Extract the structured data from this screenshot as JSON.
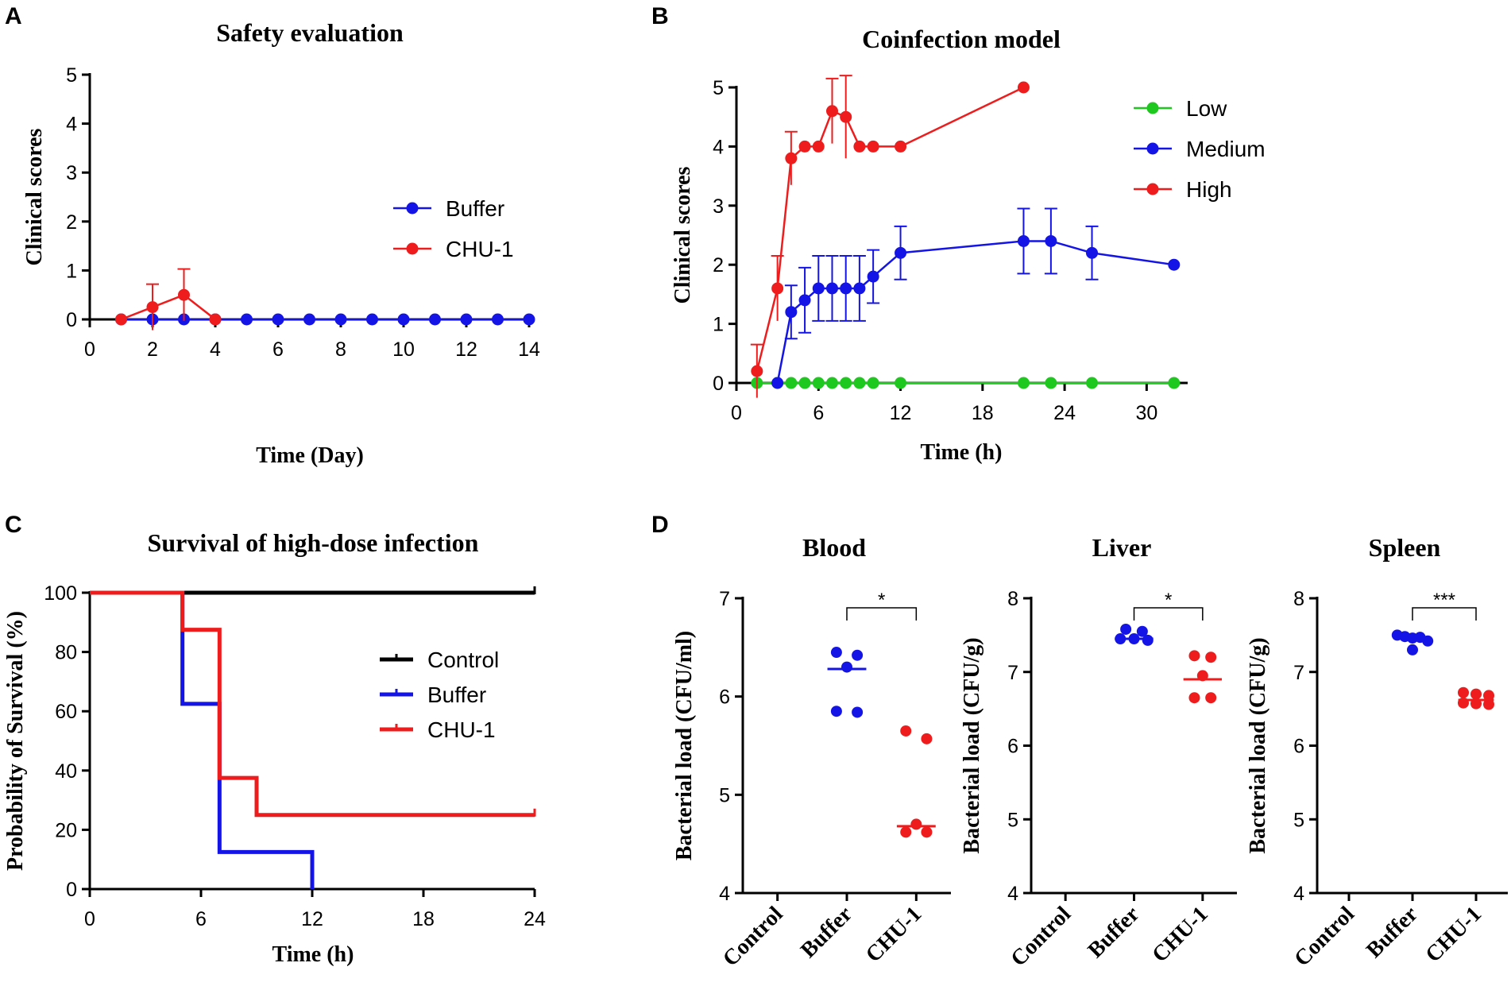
{
  "colors": {
    "blue": "#1414e6",
    "red": "#ee1c1c",
    "green": "#1ec81e",
    "black": "#000000"
  },
  "chart_data": [
    {
      "panel": "A",
      "type": "line",
      "title": "Safety evaluation",
      "xlabel": "Time (Day)",
      "ylabel": "Clinical scores",
      "xlim": [
        0,
        14
      ],
      "ylim": [
        0,
        5
      ],
      "xticks": [
        "0",
        "2",
        "4",
        "6",
        "8",
        "10",
        "12",
        "14"
      ],
      "yticks": [
        "0",
        "1",
        "2",
        "3",
        "4",
        "5"
      ],
      "legend": "right",
      "series": [
        {
          "name": "Buffer",
          "color": "blue",
          "x": [
            1,
            2,
            3,
            4,
            5,
            6,
            7,
            8,
            9,
            10,
            11,
            12,
            13,
            14
          ],
          "y": [
            0,
            0,
            0,
            0,
            0,
            0,
            0,
            0,
            0,
            0,
            0,
            0,
            0,
            0
          ]
        },
        {
          "name": "CHU-1",
          "color": "red",
          "x": [
            1,
            2,
            3,
            4
          ],
          "y": [
            0,
            0.25,
            0.5,
            0
          ],
          "err": [
            0,
            0.47,
            0.53,
            0
          ]
        }
      ]
    },
    {
      "panel": "B",
      "type": "line",
      "title": "Coinfection model",
      "xlabel": "Time (h)",
      "ylabel": "Clinical scores",
      "xlim": [
        0,
        33
      ],
      "ylim": [
        0,
        5
      ],
      "xticks": [
        "0",
        "6",
        "12",
        "18",
        "24",
        "30"
      ],
      "yticks": [
        "0",
        "1",
        "2",
        "3",
        "4",
        "5"
      ],
      "legend": "top-right",
      "series": [
        {
          "name": "Low",
          "color": "green",
          "x": [
            1.5,
            3,
            4,
            5,
            6,
            7,
            8,
            9,
            10,
            12,
            21,
            23,
            26,
            32
          ],
          "y": [
            0,
            0,
            0,
            0,
            0,
            0,
            0,
            0,
            0,
            0,
            0,
            0,
            0,
            0
          ]
        },
        {
          "name": "Medium",
          "color": "blue",
          "x": [
            3,
            4,
            5,
            6,
            7,
            8,
            9,
            10,
            12,
            21,
            23,
            26,
            32
          ],
          "y": [
            0,
            1.2,
            1.4,
            1.6,
            1.6,
            1.6,
            1.6,
            1.8,
            2.2,
            2.4,
            2.4,
            2.2,
            2.0
          ],
          "err": [
            0,
            0.45,
            0.55,
            0.55,
            0.55,
            0.55,
            0.55,
            0.45,
            0.45,
            0.55,
            0.55,
            0.45,
            0
          ]
        },
        {
          "name": "High",
          "color": "red",
          "x": [
            1.5,
            3,
            4,
            5,
            6,
            7,
            8,
            9,
            10,
            12,
            21
          ],
          "y": [
            0.2,
            1.6,
            3.8,
            4.0,
            4.0,
            4.6,
            4.5,
            4.0,
            4.0,
            4.0,
            5.0
          ],
          "err": [
            0.45,
            0.55,
            0.45,
            0,
            0,
            0.55,
            0.7,
            0,
            0,
            0,
            0
          ]
        }
      ]
    },
    {
      "panel": "C",
      "type": "line",
      "title": "Survival of  high-dose infection",
      "xlabel": "Time (h)",
      "ylabel": "Probability of Survival (%)",
      "xlim": [
        0,
        24
      ],
      "ylim": [
        0,
        100
      ],
      "xticks": [
        "0",
        "6",
        "12",
        "18",
        "24"
      ],
      "yticks": [
        "0",
        "20",
        "40",
        "60",
        "80",
        "100"
      ],
      "legend": "right",
      "series": [
        {
          "name": "Control",
          "color": "black",
          "x": [
            0,
            24
          ],
          "y": [
            100,
            100
          ]
        },
        {
          "name": "Buffer",
          "color": "blue",
          "x": [
            0,
            5,
            5,
            7,
            7,
            12,
            12
          ],
          "y": [
            100,
            100,
            62.5,
            62.5,
            12.5,
            12.5,
            0
          ]
        },
        {
          "name": "CHU-1",
          "color": "red",
          "x": [
            0,
            5,
            5,
            7,
            7,
            9,
            9,
            24
          ],
          "y": [
            100,
            100,
            87.5,
            87.5,
            37.5,
            37.5,
            25,
            25
          ]
        }
      ]
    },
    {
      "panel": "D",
      "type": "scatter",
      "title": "Blood",
      "ylabel": "Bacterial load (CFU/ml)",
      "ylim": [
        4,
        7
      ],
      "yticks": [
        "4",
        "5",
        "6",
        "7"
      ],
      "categories": [
        "Control",
        "Buffer",
        "CHU-1"
      ],
      "significance": "*",
      "series": [
        {
          "name": "Buffer",
          "color": "blue",
          "x": [
            1,
            1,
            1,
            1,
            1
          ],
          "y": [
            6.45,
            6.42,
            6.3,
            5.85,
            5.84
          ],
          "offset": [
            -0.15,
            0.15,
            0,
            -0.15,
            0.15
          ],
          "median": 6.28
        },
        {
          "name": "CHU-1",
          "color": "red",
          "x": [
            2,
            2,
            2,
            2,
            2
          ],
          "y": [
            5.65,
            5.57,
            4.7,
            4.62,
            4.62
          ],
          "offset": [
            -0.15,
            0.15,
            0,
            -0.15,
            0.15
          ],
          "median": 4.68
        }
      ]
    },
    {
      "panel": "D",
      "type": "scatter",
      "title": "Liver",
      "ylabel": "Bacterial load (CFU/g)",
      "ylim": [
        4,
        8
      ],
      "yticks": [
        "4",
        "5",
        "6",
        "7",
        "8"
      ],
      "categories": [
        "Control",
        "Buffer",
        "CHU-1"
      ],
      "significance": "*",
      "series": [
        {
          "name": "Buffer",
          "color": "blue",
          "x": [
            1,
            1,
            1,
            1,
            1
          ],
          "y": [
            7.58,
            7.55,
            7.45,
            7.45,
            7.43
          ],
          "offset": [
            -0.12,
            0.12,
            -0.2,
            0,
            0.2
          ],
          "median": 7.45
        },
        {
          "name": "CHU-1",
          "color": "red",
          "x": [
            2,
            2,
            2,
            2,
            2
          ],
          "y": [
            7.22,
            7.2,
            6.95,
            6.65,
            6.65
          ],
          "offset": [
            -0.12,
            0.12,
            0,
            -0.12,
            0.12
          ],
          "median": 6.9
        }
      ]
    },
    {
      "panel": "D",
      "type": "scatter",
      "title": "Spleen",
      "ylabel": "Bacterial load (CFU/g)",
      "ylim": [
        4,
        8
      ],
      "yticks": [
        "4",
        "5",
        "6",
        "7",
        "8"
      ],
      "categories": [
        "Control",
        "Buffer",
        "CHU-1"
      ],
      "significance": "***",
      "series": [
        {
          "name": "Buffer",
          "color": "blue",
          "x": [
            1,
            1,
            1,
            1,
            1,
            1
          ],
          "y": [
            7.5,
            7.48,
            7.46,
            7.47,
            7.42,
            7.3
          ],
          "offset": [
            -0.24,
            -0.12,
            0,
            0.12,
            0.24,
            0
          ],
          "median": 7.45
        },
        {
          "name": "CHU-1",
          "color": "red",
          "x": [
            2,
            2,
            2,
            2,
            2,
            2
          ],
          "y": [
            6.72,
            6.7,
            6.68,
            6.58,
            6.57,
            6.56
          ],
          "offset": [
            -0.2,
            0,
            0.2,
            -0.2,
            0,
            0.2
          ],
          "median": 6.62
        }
      ]
    }
  ],
  "panels": {
    "A": {
      "letter": "A"
    },
    "B": {
      "letter": "B"
    },
    "C": {
      "letter": "C"
    },
    "D": {
      "letter": "D"
    }
  }
}
